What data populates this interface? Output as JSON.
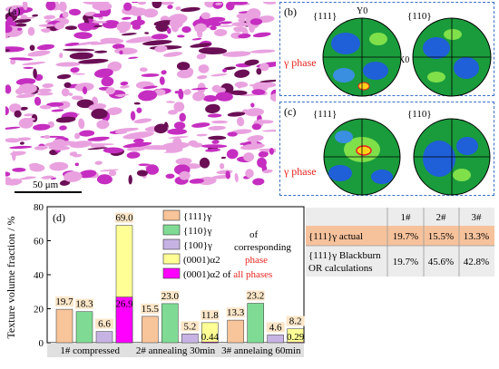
{
  "panel_a": {
    "label": "(a)",
    "scale_bar_label": "50 μm",
    "colors": {
      "light": "#e9a2df",
      "mid": "#c52ec0",
      "dark": "#6a0f55"
    }
  },
  "panel_b": {
    "label": "(b)",
    "left_plane": "{111}",
    "right_plane": "{110}",
    "y0": "Y0",
    "x0": "X0",
    "phase_label": "γ phase"
  },
  "panel_c": {
    "label": "(c)",
    "left_plane": "{111}",
    "right_plane": "{110}",
    "phase_label": "γ phase"
  },
  "panel_d": {
    "label": "(d)",
    "legend": [
      {
        "name": "{111}γ",
        "color": "#f8c499"
      },
      {
        "name": "{110}γ",
        "color": "#7fdb94"
      },
      {
        "name": "{100}γ",
        "color": "#c7b3e3"
      },
      {
        "name": "(0001)α2",
        "color": "#ffff96"
      },
      {
        "name": "(0001)α2 of ",
        "suffix": "all phases",
        "color": "#ff00ff"
      }
    ],
    "legend_note": {
      "line1": "of",
      "line2": "corresponding",
      "line3": "phase"
    },
    "table": {
      "headers": [
        "",
        "1#",
        "2#",
        "3#"
      ],
      "row1": {
        "label": "{111}γ actual",
        "values": [
          "19.7%",
          "15.5%",
          "13.3%"
        ]
      },
      "row2": {
        "label_line1": "{111}γ Blackburn",
        "label_line2": "OR calculations",
        "values": [
          "19.7%",
          "45.6%",
          "42.8%"
        ]
      }
    }
  },
  "chart_data": {
    "type": "bar",
    "ylabel": "Texture volume fraction / %",
    "ylim": [
      0,
      80
    ],
    "yticks": [
      0,
      20,
      40,
      60,
      80
    ],
    "categories": [
      "1# compressed",
      "2# annealing 30min",
      "3# annelaing 60min"
    ],
    "series": [
      {
        "name": "{111}γ",
        "color": "#f8c499",
        "values": [
          19.7,
          15.5,
          13.3
        ],
        "labels": [
          "19.7",
          "15.5",
          "13.3"
        ]
      },
      {
        "name": "{110}γ",
        "color": "#7fdb94",
        "values": [
          18.3,
          23.0,
          23.2
        ],
        "labels": [
          "18.3",
          "23.0",
          "23.2"
        ]
      },
      {
        "name": "{100}γ",
        "color": "#c7b3e3",
        "values": [
          6.6,
          5.2,
          4.6
        ],
        "labels": [
          "6.6",
          "5.2",
          "4.6"
        ]
      },
      {
        "name": "(0001)α2",
        "color": "#ffff96",
        "values": [
          69.0,
          11.8,
          8.2
        ],
        "labels": [
          "69.0",
          "11.8",
          "8.2"
        ]
      },
      {
        "name": "(0001)α2 of all phases",
        "color": "#ff00ff",
        "values": [
          26.9,
          0.44,
          0.29
        ],
        "labels": [
          "26.9",
          "0.44",
          "0.29"
        ]
      }
    ]
  }
}
